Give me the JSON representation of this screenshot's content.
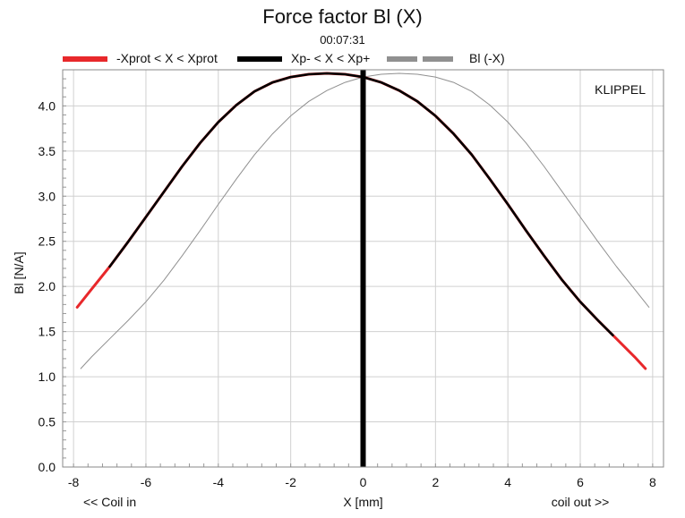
{
  "chart_data": {
    "type": "line",
    "title": "Force factor Bl (X)",
    "subtitle": "00:07:31",
    "watermark": "KLIPPEL",
    "xlabel": "X [mm]",
    "xlabel_left": "<< Coil in",
    "xlabel_right": "coil out >>",
    "ylabel": "Bl [N/A]",
    "xlim": [
      -8.3,
      8.3
    ],
    "ylim": [
      0.0,
      4.4
    ],
    "xticks": [
      -8,
      -6,
      -4,
      -2,
      0,
      2,
      4,
      6,
      8
    ],
    "xtick_labels": [
      "-8",
      "-6",
      "-4",
      "-2",
      "0",
      "2",
      "4",
      "6",
      "8"
    ],
    "yticks": [
      0.0,
      0.5,
      1.0,
      1.5,
      2.0,
      2.5,
      3.0,
      3.5,
      4.0
    ],
    "ytick_labels": [
      "0.0",
      "0.5",
      "1.0",
      "1.5",
      "2.0",
      "2.5",
      "3.0",
      "3.5",
      "4.0"
    ],
    "grid": true,
    "legend_position": "top",
    "legend": [
      {
        "label": "-Xprot < X < Xprot",
        "color": "#e8282b"
      },
      {
        "label": "Xp- < X < Xp+",
        "color": "#000000"
      },
      {
        "label": "Bl (-X)",
        "color": "#909090"
      }
    ],
    "series": [
      {
        "name": "-Xprot < X < Xprot",
        "color": "#e8282b",
        "x": [
          -7.9,
          -7.5,
          -7.0,
          -6.5,
          -6.0,
          -5.5,
          -5.0,
          -4.5,
          -4.0,
          -3.5,
          -3.0,
          -2.5,
          -2.0,
          -1.5,
          -1.0,
          -0.5,
          0.0,
          0.5,
          1.0,
          1.5,
          2.0,
          2.5,
          3.0,
          3.5,
          4.0,
          4.5,
          5.0,
          5.5,
          6.0,
          6.5,
          7.0,
          7.5,
          7.8
        ],
        "y": [
          1.77,
          1.97,
          2.22,
          2.49,
          2.77,
          3.05,
          3.33,
          3.59,
          3.82,
          4.01,
          4.16,
          4.26,
          4.32,
          4.35,
          4.36,
          4.35,
          4.32,
          4.26,
          4.17,
          4.05,
          3.89,
          3.69,
          3.46,
          3.19,
          2.91,
          2.62,
          2.34,
          2.07,
          1.83,
          1.62,
          1.42,
          1.22,
          1.09
        ]
      },
      {
        "name": "Xp- < X < Xp+",
        "color": "#000000",
        "x": [
          -7.0,
          -6.5,
          -6.0,
          -5.5,
          -5.0,
          -4.5,
          -4.0,
          -3.5,
          -3.0,
          -2.5,
          -2.0,
          -1.5,
          -1.0,
          -0.5,
          0.0,
          0.5,
          1.0,
          1.5,
          2.0,
          2.5,
          3.0,
          3.5,
          4.0,
          4.5,
          5.0,
          5.5,
          6.0,
          6.5,
          6.9
        ],
        "y": [
          2.22,
          2.49,
          2.77,
          3.05,
          3.33,
          3.59,
          3.82,
          4.01,
          4.16,
          4.26,
          4.32,
          4.35,
          4.36,
          4.35,
          4.32,
          4.26,
          4.17,
          4.05,
          3.89,
          3.69,
          3.46,
          3.19,
          2.91,
          2.62,
          2.34,
          2.07,
          1.83,
          1.62,
          1.46
        ]
      },
      {
        "name": "Bl (-X)",
        "color": "#909090",
        "x": [
          -7.8,
          -7.5,
          -7.0,
          -6.5,
          -6.0,
          -5.5,
          -5.0,
          -4.5,
          -4.0,
          -3.5,
          -3.0,
          -2.5,
          -2.0,
          -1.5,
          -1.0,
          -0.5,
          0.0,
          0.5,
          1.0,
          1.5,
          2.0,
          2.5,
          3.0,
          3.5,
          4.0,
          4.5,
          5.0,
          5.5,
          6.0,
          6.5,
          7.0,
          7.5,
          7.9
        ],
        "y": [
          1.09,
          1.22,
          1.42,
          1.62,
          1.83,
          2.07,
          2.34,
          2.62,
          2.91,
          3.19,
          3.46,
          3.69,
          3.89,
          4.05,
          4.17,
          4.26,
          4.32,
          4.35,
          4.36,
          4.35,
          4.32,
          4.26,
          4.16,
          4.01,
          3.82,
          3.59,
          3.33,
          3.05,
          2.77,
          2.49,
          2.22,
          1.97,
          1.77
        ]
      }
    ],
    "vertical_marker": {
      "x": 0.0,
      "color": "#000000"
    }
  }
}
